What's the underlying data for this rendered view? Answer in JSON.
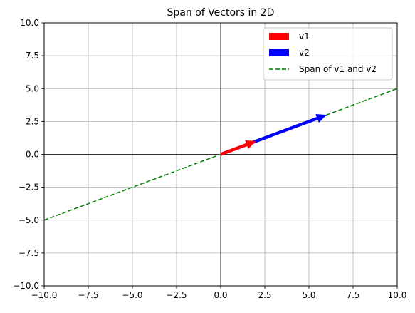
{
  "chart_data": {
    "type": "line",
    "title": "Span of Vectors in 2D",
    "xlabel": "",
    "ylabel": "",
    "xlim": [
      -10,
      10
    ],
    "ylim": [
      -10,
      10
    ],
    "x_ticks": [
      -10,
      -7.5,
      -5,
      -2.5,
      0,
      2.5,
      5,
      7.5,
      10
    ],
    "y_ticks": [
      -10,
      -7.5,
      -5,
      -2.5,
      0,
      2.5,
      5,
      7.5,
      10
    ],
    "x_tick_labels": [
      "−10.0",
      "−7.5",
      "−5.0",
      "−2.5",
      "0.0",
      "2.5",
      "5.0",
      "7.5",
      "10.0"
    ],
    "y_tick_labels": [
      "−10.0",
      "−7.5",
      "−5.0",
      "−2.5",
      "0.0",
      "2.5",
      "5.0",
      "7.5",
      "10.0"
    ],
    "grid": true,
    "legend_position": "top-right",
    "vectors": [
      {
        "name": "v1",
        "from": [
          0,
          0
        ],
        "to": [
          2,
          1
        ],
        "color": "#ff0000"
      },
      {
        "name": "v2",
        "from": [
          0,
          0
        ],
        "to": [
          6,
          3
        ],
        "color": "#0000ff"
      }
    ],
    "span_line": {
      "name": "Span of v1 and v2",
      "x": [
        -10,
        10
      ],
      "y": [
        -5,
        5
      ],
      "color": "#008000",
      "style": "dashed"
    },
    "axis_lines": {
      "x0": true,
      "y0": true,
      "color": "#000000"
    }
  }
}
